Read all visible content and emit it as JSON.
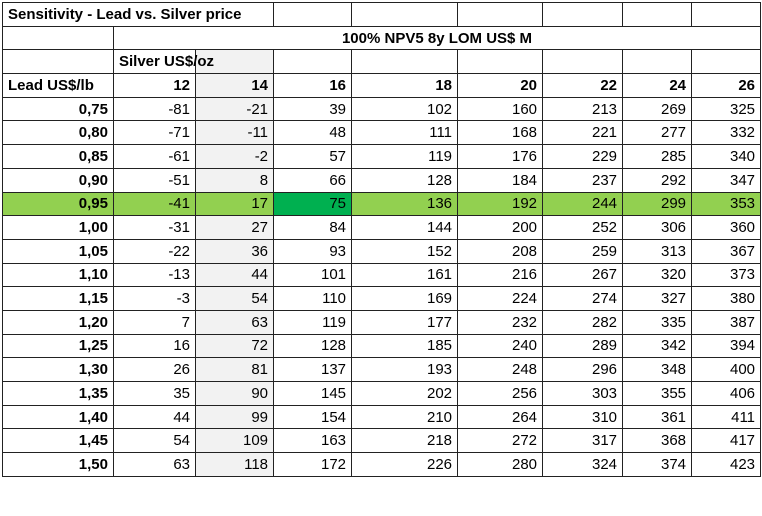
{
  "title": "Sensitivity - Lead vs. Silver price",
  "metric_header": "100% NPV5 8y LOM US$ M",
  "col_axis_label": "Silver US$/oz",
  "row_axis_label": "Lead US$/lb",
  "silver_prices": [
    "12",
    "14",
    "16",
    "18",
    "20",
    "22",
    "24",
    "26"
  ],
  "highlight_row": "0,95",
  "highlight_cell": {
    "lead": "0,95",
    "silver": "16"
  },
  "colors": {
    "highlight_row": "#92d050",
    "highlight_cell": "#00b050",
    "shaded_column": "#f2f2f2"
  },
  "rows": [
    {
      "lead": "0,75",
      "values": [
        "-81",
        "-21",
        "39",
        "102",
        "160",
        "213",
        "269",
        "325"
      ]
    },
    {
      "lead": "0,80",
      "values": [
        "-71",
        "-11",
        "48",
        "111",
        "168",
        "221",
        "277",
        "332"
      ]
    },
    {
      "lead": "0,85",
      "values": [
        "-61",
        "-2",
        "57",
        "119",
        "176",
        "229",
        "285",
        "340"
      ]
    },
    {
      "lead": "0,90",
      "values": [
        "-51",
        "8",
        "66",
        "128",
        "184",
        "237",
        "292",
        "347"
      ]
    },
    {
      "lead": "0,95",
      "values": [
        "-41",
        "17",
        "75",
        "136",
        "192",
        "244",
        "299",
        "353"
      ]
    },
    {
      "lead": "1,00",
      "values": [
        "-31",
        "27",
        "84",
        "144",
        "200",
        "252",
        "306",
        "360"
      ]
    },
    {
      "lead": "1,05",
      "values": [
        "-22",
        "36",
        "93",
        "152",
        "208",
        "259",
        "313",
        "367"
      ]
    },
    {
      "lead": "1,10",
      "values": [
        "-13",
        "44",
        "101",
        "161",
        "216",
        "267",
        "320",
        "373"
      ]
    },
    {
      "lead": "1,15",
      "values": [
        "-3",
        "54",
        "110",
        "169",
        "224",
        "274",
        "327",
        "380"
      ]
    },
    {
      "lead": "1,20",
      "values": [
        "7",
        "63",
        "119",
        "177",
        "232",
        "282",
        "335",
        "387"
      ]
    },
    {
      "lead": "1,25",
      "values": [
        "16",
        "72",
        "128",
        "185",
        "240",
        "289",
        "342",
        "394"
      ]
    },
    {
      "lead": "1,30",
      "values": [
        "26",
        "81",
        "137",
        "193",
        "248",
        "296",
        "348",
        "400"
      ]
    },
    {
      "lead": "1,35",
      "values": [
        "35",
        "90",
        "145",
        "202",
        "256",
        "303",
        "355",
        "406"
      ]
    },
    {
      "lead": "1,40",
      "values": [
        "44",
        "99",
        "154",
        "210",
        "264",
        "310",
        "361",
        "411"
      ]
    },
    {
      "lead": "1,45",
      "values": [
        "54",
        "109",
        "163",
        "218",
        "272",
        "317",
        "368",
        "417"
      ]
    },
    {
      "lead": "1,50",
      "values": [
        "63",
        "118",
        "172",
        "226",
        "280",
        "324",
        "374",
        "423"
      ]
    }
  ]
}
